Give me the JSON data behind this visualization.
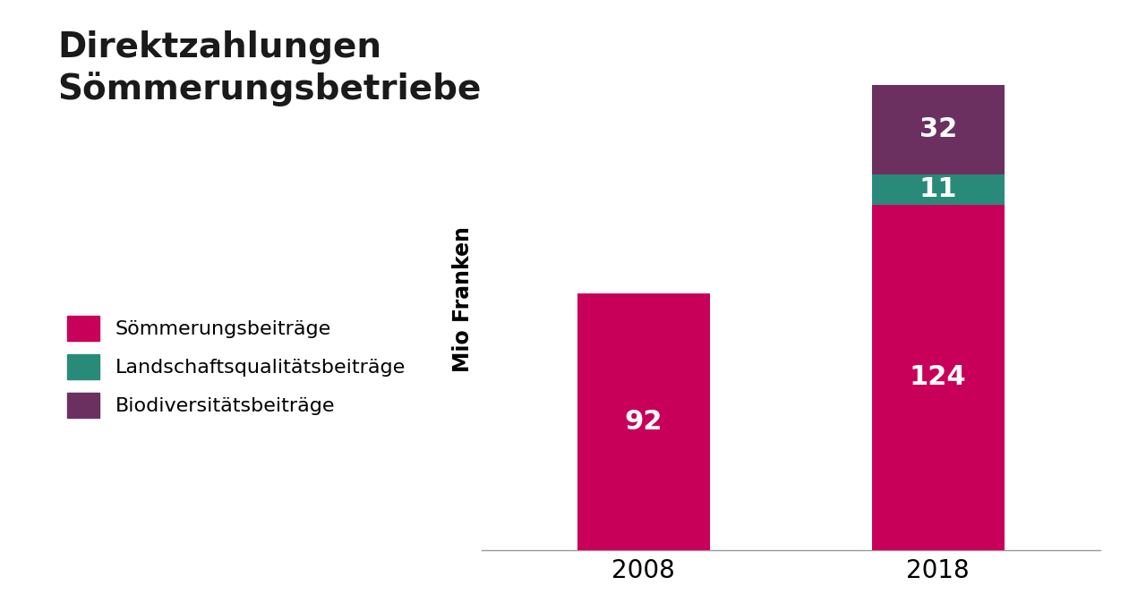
{
  "title_line1": "Direktzahlungen",
  "title_line2": "Sömmerungsbetriebe",
  "categories": [
    "2008",
    "2018"
  ],
  "sommerungsbeitrage": [
    92,
    124
  ],
  "landschaftsqualitat": [
    0,
    11
  ],
  "biodiversitat": [
    0,
    32
  ],
  "color_sommerung": "#C8005A",
  "color_landschaft": "#2A8A7A",
  "color_biodiversitat": "#6B3060",
  "ylabel": "Mio Franken",
  "legend_labels": [
    "Sömmerungsbeiträge",
    "Landschaftsqualitätsbeiträge",
    "Biodiversitätsbeiträge"
  ],
  "label_color": "#ffffff",
  "title_fontsize": 28,
  "label_fontsize": 22,
  "tick_fontsize": 20,
  "legend_fontsize": 16,
  "ylabel_fontsize": 17,
  "background_color": "#ffffff",
  "bar_width": 0.45
}
